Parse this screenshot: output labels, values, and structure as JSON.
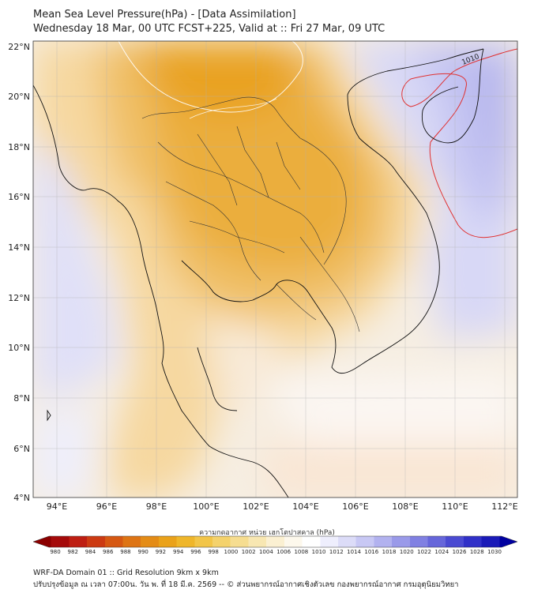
{
  "header": {
    "title": "Mean Sea Level Pressure(hPa) - [Data Assimilation]",
    "subtitle": "Wednesday 18 Mar, 00 UTC FCST+225, Valid at :: Fri 27 Mar, 09 UTC"
  },
  "map": {
    "lon_labels": [
      "94°E",
      "96°E",
      "98°E",
      "100°E",
      "102°E",
      "104°E",
      "106°E",
      "108°E",
      "110°E",
      "112°E"
    ],
    "lat_labels": [
      "22°N",
      "20°N",
      "18°N",
      "16°N",
      "14°N",
      "12°N",
      "10°N",
      "8°N",
      "6°N",
      "4°N"
    ],
    "contour_label": "1010",
    "contour_color": "#e03030"
  },
  "colorbar": {
    "title": "ความกดอากาศ หน่วย เฮกโตปาสคาล (hPa)",
    "levels": [
      "980",
      "982",
      "984",
      "986",
      "988",
      "990",
      "992",
      "994",
      "996",
      "998",
      "1000",
      "1002",
      "1004",
      "1006",
      "1008",
      "1010",
      "1012",
      "1014",
      "1016",
      "1018",
      "1020",
      "1022",
      "1024",
      "1026",
      "1028",
      "1030"
    ],
    "colors": [
      "#8b0000",
      "#a50a0a",
      "#be1e12",
      "#cc3a12",
      "#d65812",
      "#de7414",
      "#e48c16",
      "#eaa21a",
      "#efb62a",
      "#f2c548",
      "#f4d26c",
      "#f6dd90",
      "#f8e7b2",
      "#fbf0d2",
      "#fdf8ec",
      "#ffffff",
      "#eeeefd",
      "#dcdcf8",
      "#c8c8f4",
      "#b2b2ef",
      "#9a9ae9",
      "#8080e2",
      "#6666da",
      "#4a4ad2",
      "#3030c8",
      "#1a1ab8",
      "#0000a0"
    ]
  },
  "footer": {
    "line1": "WRF-DA Domain 01 :: Grid Resolution 9km x 9km",
    "line2": "ปรับปรุงข้อมูล ณ เวลา 07:00น. วัน พ. ที่ 18 มี.ค. 2569 -- © ส่วนพยากรณ์อากาศเชิงตัวเลข กองพยากรณ์อากาศ กรมอุตุนิยมวิทยา"
  }
}
